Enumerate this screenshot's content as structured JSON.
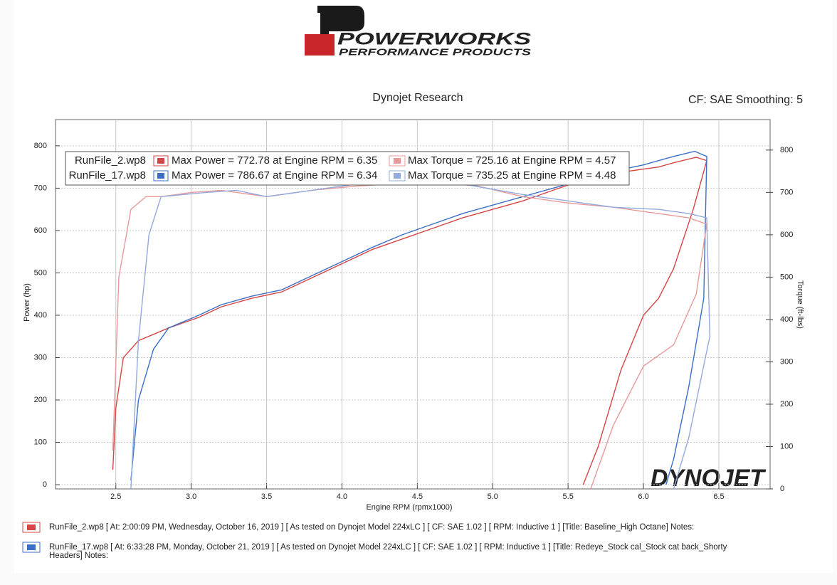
{
  "header": {
    "brand": "POWERWORKS",
    "tagline": "PERFORMANCE PRODUCTS"
  },
  "chart_data": {
    "type": "line",
    "title": "Dynojet Research",
    "subtitle": "CF: SAE Smoothing: 5",
    "x_label": "Engine RPM (rpmx1000)",
    "y_label": "Power (hp)",
    "y2_label": "Torque (ft-lbs)",
    "watermark": "DYNOJET",
    "xlim": [
      2.1,
      6.84
    ],
    "ylim": [
      -10,
      862
    ],
    "y2lim": [
      0,
      872
    ],
    "xticks": [
      2.5,
      {
        "value": 3,
        "label": "3.0"
      },
      3.5,
      {
        "value": 4,
        "label": "4.0"
      },
      4.5,
      {
        "value": 5,
        "label": "5.0"
      },
      5.5,
      {
        "value": 6,
        "label": "6.0"
      },
      6.5
    ],
    "yticks": [
      0,
      100,
      200,
      300,
      400,
      500,
      600,
      700,
      800
    ],
    "y2ticks": [
      0,
      100,
      200,
      300,
      400,
      500,
      600,
      700,
      800
    ],
    "grid": true,
    "legend": [
      {
        "run": "RunFile_2.wp8",
        "power": "Max Power = 772.78 at Engine RPM = 6.35",
        "torque": "Max Torque = 725.16 at Engine RPM = 4.57",
        "power_color": "#d64545",
        "torque_color": "#e89a9a"
      },
      {
        "run": "RunFile_17.wp8",
        "power": "Max Power = 786.67 at Engine RPM = 6.34",
        "torque": "Max Torque = 735.25 at Engine RPM = 4.48",
        "power_color": "#3b6fc6",
        "torque_color": "#93aade"
      }
    ],
    "series": [
      {
        "color": "#d64545",
        "x": [
          2.48,
          2.5,
          2.55,
          2.65,
          2.85,
          3.05,
          3.2,
          3.4,
          3.6,
          3.75,
          3.9,
          4.05,
          4.2,
          4.4,
          4.6,
          4.8,
          5.0,
          5.2,
          5.4,
          5.6,
          5.8,
          6.0,
          6.1,
          6.2,
          6.35,
          6.42,
          6.33,
          6.2,
          6.1,
          6.0,
          5.85,
          5.7,
          5.6
        ],
        "values": [
          35,
          180,
          300,
          340,
          370,
          395,
          420,
          440,
          455,
          480,
          505,
          530,
          555,
          580,
          605,
          630,
          650,
          670,
          695,
          720,
          735,
          745,
          750,
          760,
          773,
          765,
          650,
          510,
          440,
          400,
          270,
          90,
          0
        ]
      },
      {
        "color": "#3b6fc6",
        "x": [
          2.6,
          2.65,
          2.75,
          2.85,
          3.05,
          3.2,
          3.4,
          3.6,
          3.75,
          3.9,
          4.05,
          4.2,
          4.4,
          4.6,
          4.8,
          5.0,
          5.2,
          5.4,
          5.6,
          5.8,
          6.0,
          6.1,
          6.2,
          6.34,
          6.42,
          6.4,
          6.3,
          6.2,
          6.15
        ],
        "values": [
          10,
          200,
          320,
          370,
          400,
          425,
          445,
          460,
          485,
          510,
          535,
          560,
          590,
          615,
          640,
          660,
          680,
          700,
          720,
          740,
          755,
          765,
          775,
          787,
          775,
          440,
          230,
          60,
          0
        ]
      },
      {
        "color": "#e89a9a",
        "axis": "y2",
        "x": [
          2.48,
          2.52,
          2.6,
          2.7,
          2.8,
          3.0,
          3.2,
          3.5,
          3.8,
          4.1,
          4.57,
          4.9,
          5.2,
          5.5,
          5.8,
          6.1,
          6.3,
          6.42,
          6.35,
          6.2,
          6.0,
          5.8,
          5.65
        ],
        "values": [
          90,
          500,
          660,
          690,
          690,
          700,
          705,
          690,
          705,
          715,
          725,
          715,
          690,
          675,
          665,
          650,
          640,
          625,
          460,
          340,
          290,
          150,
          0
        ]
      },
      {
        "color": "#93aade",
        "axis": "y2",
        "x": [
          2.6,
          2.65,
          2.72,
          2.8,
          3.1,
          3.3,
          3.5,
          3.8,
          4.1,
          4.48,
          4.8,
          5.2,
          5.5,
          5.8,
          6.1,
          6.3,
          6.42,
          6.44,
          6.3,
          6.2
        ],
        "values": [
          0,
          350,
          600,
          690,
          700,
          705,
          690,
          705,
          720,
          735,
          720,
          695,
          680,
          665,
          660,
          650,
          640,
          360,
          120,
          0
        ]
      }
    ],
    "notes": [
      {
        "color": "#d64545",
        "text": "RunFile_2.wp8 [ At: 2:00:09 PM, Wednesday, October 16, 2019 ] [ As tested on Dynojet Model 224xLC ] [ CF: SAE 1.02 ] [ RPM: Inductive 1 ] [Title: Baseline_High Octane]  Notes:",
        "text2": null
      },
      {
        "color": "#3b6fc6",
        "text": "RunFile_17.wp8 [ At: 6:33:28 PM, Monday, October 21, 2019 ] [ As tested on Dynojet Model 224xLC ] [ CF: SAE 1.02 ] [ RPM: Inductive 1 ] [Title: Redeye_Stock cal_Stock cat back_Shorty",
        "text2": "Headers]  Notes:"
      }
    ]
  }
}
